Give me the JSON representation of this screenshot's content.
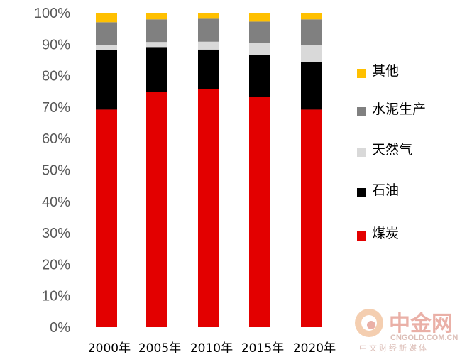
{
  "chart_data": {
    "type": "bar",
    "stacked": true,
    "normalized": true,
    "categories": [
      "2000年",
      "2005年",
      "2010年",
      "2015年",
      "2020年"
    ],
    "series": [
      {
        "name": "煤炭",
        "color": "#e30000",
        "values": [
          69.2,
          74.8,
          75.7,
          73.3,
          69.2
        ]
      },
      {
        "name": "石油",
        "color": "#000000",
        "values": [
          18.9,
          14.3,
          12.6,
          13.4,
          15.1
        ]
      },
      {
        "name": "天然气",
        "color": "#d9d9d9",
        "values": [
          1.6,
          1.6,
          2.5,
          3.8,
          5.5
        ]
      },
      {
        "name": "水泥生产",
        "color": "#808080",
        "values": [
          7.3,
          7.2,
          7.3,
          6.7,
          8.1
        ]
      },
      {
        "name": "其他",
        "color": "#ffc000",
        "values": [
          3.0,
          2.1,
          1.9,
          2.8,
          2.1
        ]
      }
    ],
    "yticks": [
      "0%",
      "10%",
      "20%",
      "30%",
      "40%",
      "50%",
      "60%",
      "70%",
      "80%",
      "90%",
      "100%"
    ],
    "ylim": [
      0,
      100
    ],
    "title": "",
    "xlabel": "",
    "ylabel": "",
    "grid": false,
    "legend_position": "right",
    "legend_order": [
      "其他",
      "水泥生产",
      "天然气",
      "石油",
      "煤炭"
    ]
  },
  "watermark": {
    "name": "中金网",
    "site": "CNGOLD.COM.CN",
    "subtitle": "中文财经新媒体"
  }
}
